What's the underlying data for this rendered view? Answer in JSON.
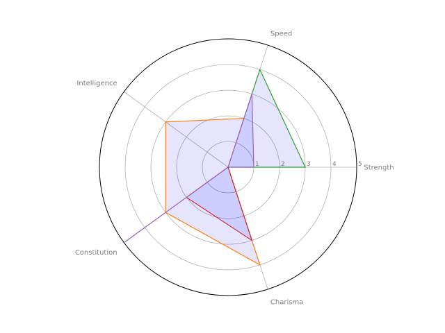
{
  "chart_data": {
    "type": "radar",
    "title": "",
    "categories": [
      "Strength",
      "Speed",
      "Intelligence",
      "Charisma",
      "Constitution"
    ],
    "axis_order_counterclockwise_from_right": [
      "Strength",
      "Speed",
      "Intelligence",
      "Constitution",
      "Charisma"
    ],
    "radial_ticks": [
      "1",
      "2",
      "3",
      "4",
      "5"
    ],
    "rlim": [
      0,
      5
    ],
    "grid": true,
    "series": [
      {
        "values": {
          "Strength": 3,
          "Speed": 4,
          "Intelligence": 0,
          "Constitution": 0,
          "Charisma": 0
        },
        "color": "#2ca02c",
        "filled": true
      },
      {
        "values": {
          "Strength": 0,
          "Speed": 2,
          "Intelligence": 3,
          "Constitution": 3,
          "Charisma": 4
        },
        "color": "#ff7f0e",
        "filled": true
      },
      {
        "values": {
          "Strength": 0,
          "Speed": 0,
          "Intelligence": 0,
          "Constitution": 2,
          "Charisma": 3
        },
        "color": "#d62728",
        "filled": true
      },
      {
        "values": {
          "Strength": 1,
          "Speed": 3,
          "Intelligence": 0,
          "Constitution": 5,
          "Charisma": 0
        },
        "color": "#9467bd",
        "filled": true
      }
    ],
    "fill_color": "#0000ff",
    "fill_opacity": 0.1
  }
}
